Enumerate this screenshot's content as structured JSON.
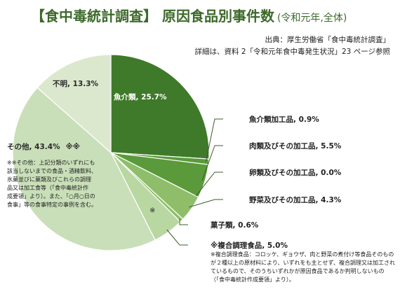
{
  "header": {
    "title": "【食中毒統計調査】 原因食品別事件数",
    "subtitle": "(令和元年,全体)",
    "source_line1": "出典：厚生労働省「食中毒統計調査」",
    "source_line2": "詳細は、資料 2「令和元年食中毒発生状況」23 ページ参照"
  },
  "colors": {
    "title": "#3c6a2a",
    "leader": "#3b5f2a",
    "slice_dark": "#3f7a2a",
    "slice_mid": "#5a9a3a",
    "slice_light": "#8fbe6a",
    "slice_pale": "#b9d7a1",
    "slice_other": "#c9dfb9",
    "slice_unknown": "#dbe8ce"
  },
  "chart_data": {
    "type": "pie",
    "start_angle_deg": 0,
    "direction": "clockwise",
    "slices": [
      {
        "label": "魚介類",
        "value": 25.7,
        "display": "魚介類, 25.7%"
      },
      {
        "label": "魚介類加工品",
        "value": 0.9,
        "display": "魚介類加工品, 0.9%"
      },
      {
        "label": "肉類及びその加工品",
        "value": 5.5,
        "display": "肉類及びその加工品, 5.5%"
      },
      {
        "label": "卵類及びその加工品",
        "value": 0.0,
        "display": "卵類及びその加工品, 0.0%"
      },
      {
        "label": "野菜及びその加工品",
        "value": 4.3,
        "display": "野菜及びその加工品, 4.3%"
      },
      {
        "label": "菓子類",
        "value": 0.6,
        "display": "菓子類, 0.6%"
      },
      {
        "label": "※複合調理食品",
        "value": 5.0,
        "display": "※複合調理食品, 5.0%"
      },
      {
        "label": "その他",
        "value": 43.4,
        "display": "その他, 43.4%",
        "marker": "※※"
      },
      {
        "label": "不明",
        "value": 13.3,
        "display": "不明, 13.3%"
      }
    ],
    "annotations": {
      "composite_marker": "※",
      "other_note_lines": [
        "※※その他：上記分類のいずれにも",
        "該当しないまでの食品・酒精飲料、",
        "氷菓並びに菓類及びこれらの調理",
        "品又は加工食等（「食中毒統計作",
        "成要領」より）。また、「○月○日の",
        "食事」等の食事特定の事例を含む。"
      ],
      "composite_note_lines": [
        "※複合調理食品：コロッケ、ギョウザ、肉と野菜の煮付け等食品そのもの",
        "が２種以上の原材料により、いずれをも主とせず、複合調理又は加工され",
        "ているもので、そのうちいずれかが原因食品であるか判明しないもの",
        "（「食中毒統計作成要領」より）。"
      ]
    }
  }
}
